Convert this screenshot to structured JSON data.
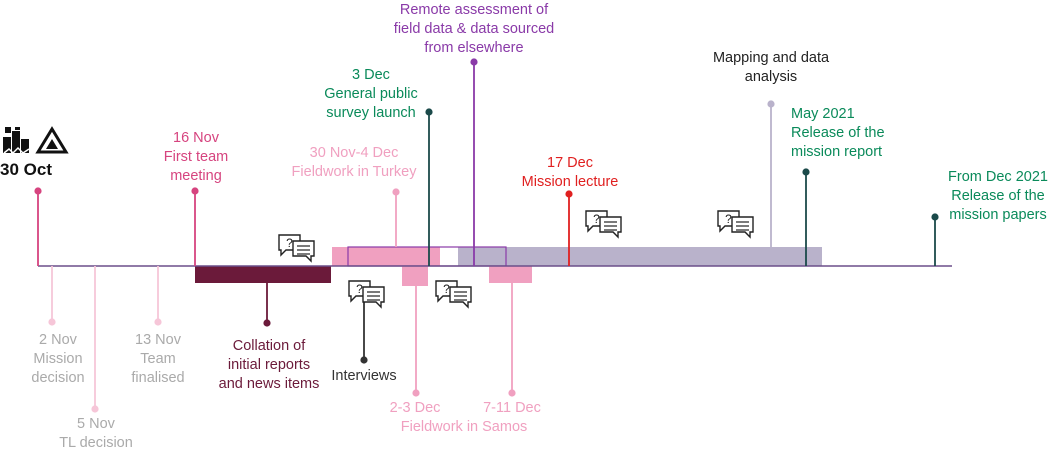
{
  "colors": {
    "axis": "#6b4f8a",
    "pink": "#d6447f",
    "light_pink": "#f0a0c0",
    "pale_pink": "#f6c6d8",
    "grey": "#aaaaaa",
    "grey_bar": "#b9b2cb",
    "maroon": "#6b1a3a",
    "dark_green": "#1b4a4a",
    "green_text": "#0a8a5a",
    "purple": "#8a3aa8",
    "red": "#e02020",
    "dark": "#333333"
  },
  "events": {
    "oct30": {
      "lines": [
        "30 Oct"
      ]
    },
    "nov16": {
      "lines": [
        "16 Nov",
        "First team",
        "meeting"
      ]
    },
    "dec3": {
      "lines": [
        "3 Dec",
        "General public",
        "survey launch"
      ]
    },
    "remote": {
      "lines": [
        "Remote assessment of",
        "field data & data sourced",
        "from elsewhere"
      ]
    },
    "turkey": {
      "lines": [
        "30 Nov-4 Dec",
        "Fieldwork in Turkey"
      ]
    },
    "dec17": {
      "lines": [
        "17 Dec",
        "Mission lecture"
      ]
    },
    "mapping": {
      "lines": [
        "Mapping and data",
        "analysis"
      ]
    },
    "may2021": {
      "lines": [
        "May 2021",
        "Release of the",
        "mission report"
      ]
    },
    "dec2021": {
      "lines": [
        "From Dec 2021",
        "Release of the",
        "mission papers"
      ]
    },
    "nov2": {
      "lines": [
        "2 Nov",
        "Mission",
        "decision"
      ]
    },
    "nov5": {
      "lines": [
        "5 Nov",
        "TL decision"
      ]
    },
    "nov13": {
      "lines": [
        "13 Nov",
        "Team",
        "finalised"
      ]
    },
    "collation": {
      "lines": [
        "Collation of",
        "initial reports",
        "and news items"
      ]
    },
    "interviews": {
      "lines": [
        "Interviews"
      ]
    },
    "samos1": {
      "lines": [
        "2-3 Dec"
      ]
    },
    "samos2": {
      "lines": [
        "7-11 Dec"
      ]
    },
    "samos_label": {
      "lines": [
        "Fieldwork in Samos"
      ]
    }
  },
  "icons": [
    "earthquake-building-icon",
    "landslide-mountain-icon",
    "interview-chat-icon"
  ]
}
